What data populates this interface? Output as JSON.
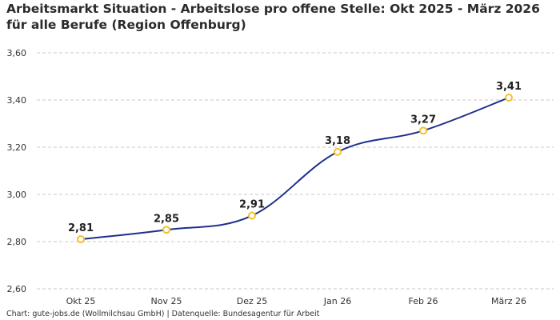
{
  "chart_data": {
    "type": "line",
    "title": "Arbeitsmarkt Situation - Arbeitslose pro offene Stelle: Okt 2025 - März 2026 für alle Berufe (Region Offenburg)",
    "categories": [
      "Okt 25",
      "Nov 25",
      "Dez 25",
      "Jan 26",
      "Feb 26",
      "März 26"
    ],
    "series": [
      {
        "values": [
          2.81,
          2.85,
          2.91,
          3.18,
          3.27,
          3.41
        ]
      }
    ],
    "data_labels": [
      "2,81",
      "2,85",
      "2,91",
      "3,18",
      "3,27",
      "3,41"
    ],
    "y_ticks": [
      2.6,
      2.8,
      3.0,
      3.2,
      3.4,
      3.6
    ],
    "y_tick_labels": [
      "2,60",
      "2,80",
      "3,00",
      "3,20",
      "3,40",
      "3,60"
    ],
    "ylim": [
      2.6,
      3.6
    ],
    "grid": true,
    "legend": "none",
    "colors": {
      "line": "#1f2f8c",
      "marker_stroke": "#f2c12e",
      "marker_fill": "#ffffff",
      "grid": "#c9c9c9"
    }
  },
  "footer": {
    "source": "Chart: gute-jobs.de (Wollmilchsau GmbH) | Datenquelle: Bundesagentur für Arbeit"
  }
}
